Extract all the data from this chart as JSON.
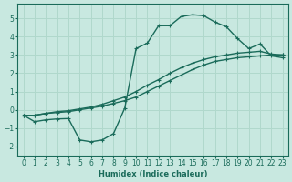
{
  "xlabel": "Humidex (Indice chaleur)",
  "xlim": [
    -0.5,
    23.5
  ],
  "ylim": [
    -2.5,
    5.8
  ],
  "xticks": [
    0,
    1,
    2,
    3,
    4,
    5,
    6,
    7,
    8,
    9,
    10,
    11,
    12,
    13,
    14,
    15,
    16,
    17,
    18,
    19,
    20,
    21,
    22,
    23
  ],
  "yticks": [
    -2,
    -1,
    0,
    1,
    2,
    3,
    4,
    5
  ],
  "bg_color": "#c8e8e0",
  "line_color": "#1a6b5a",
  "grid_color": "#b0d8cc",
  "line1_x": [
    0,
    1,
    2,
    3,
    4,
    5,
    6,
    7,
    8,
    9,
    10,
    11,
    12,
    13,
    14,
    15,
    16,
    17,
    18,
    19,
    20,
    21,
    22,
    23
  ],
  "line1_y": [
    -0.3,
    -0.65,
    -0.55,
    -0.5,
    -0.48,
    -1.65,
    -1.75,
    -1.65,
    -1.3,
    0.1,
    3.35,
    3.65,
    4.6,
    4.6,
    5.1,
    5.2,
    5.15,
    4.8,
    4.55,
    3.9,
    3.35,
    3.6,
    2.95,
    2.85
  ],
  "line2_x": [
    0,
    1,
    2,
    3,
    4,
    5,
    6,
    7,
    8,
    9,
    10,
    11,
    12,
    13,
    14,
    15,
    16,
    17,
    18,
    19,
    20,
    21,
    22,
    23
  ],
  "line2_y": [
    -0.3,
    -0.3,
    -0.2,
    -0.15,
    -0.1,
    0.0,
    0.1,
    0.2,
    0.35,
    0.5,
    0.7,
    1.0,
    1.3,
    1.6,
    1.9,
    2.2,
    2.45,
    2.65,
    2.75,
    2.85,
    2.9,
    2.95,
    3.0,
    3.0
  ],
  "line3_x": [
    0,
    1,
    2,
    3,
    4,
    5,
    6,
    7,
    8,
    9,
    10,
    11,
    12,
    13,
    14,
    15,
    16,
    17,
    18,
    19,
    20,
    21,
    22,
    23
  ],
  "line3_y": [
    -0.3,
    -0.3,
    -0.2,
    -0.1,
    -0.05,
    0.05,
    0.15,
    0.3,
    0.5,
    0.7,
    1.0,
    1.35,
    1.65,
    2.0,
    2.3,
    2.55,
    2.75,
    2.9,
    3.0,
    3.1,
    3.15,
    3.2,
    3.05,
    3.0
  ]
}
